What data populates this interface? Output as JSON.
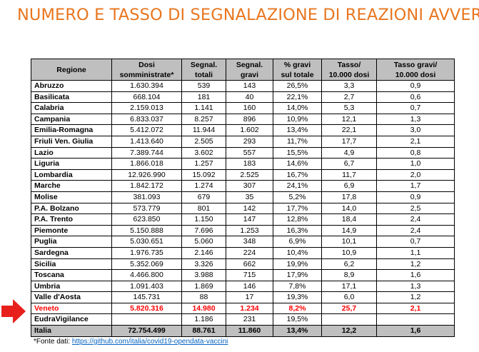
{
  "title": "NUMERO E TASSO DI SEGNALAZIONE DI REAZIONI AVVERSE",
  "table": {
    "headers": [
      [
        "Regione"
      ],
      [
        "Dosi",
        "somministrate*"
      ],
      [
        "Segnal.",
        "totali"
      ],
      [
        "Segnal.",
        "gravi"
      ],
      [
        "% gravi",
        "sul totale"
      ],
      [
        "Tasso/",
        "10.000 dosi"
      ],
      [
        "Tasso gravi/",
        "10.000 dosi"
      ]
    ],
    "rows": [
      [
        "Abruzzo",
        "1.630.394",
        "539",
        "143",
        "26,5%",
        "3,3",
        "0,9"
      ],
      [
        "Basilicata",
        "668.104",
        "181",
        "40",
        "22,1%",
        "2,7",
        "0,6"
      ],
      [
        "Calabria",
        "2.159.013",
        "1.141",
        "160",
        "14,0%",
        "5,3",
        "0,7"
      ],
      [
        "Campania",
        "6.833.037",
        "8.257",
        "896",
        "10,9%",
        "12,1",
        "1,3"
      ],
      [
        "Emilia-Romagna",
        "5.412.072",
        "11.944",
        "1.602",
        "13,4%",
        "22,1",
        "3,0"
      ],
      [
        "Friuli Ven. Giulia",
        "1.413.640",
        "2.505",
        "293",
        "11,7%",
        "17,7",
        "2,1"
      ],
      [
        "Lazio",
        "7.389.744",
        "3.602",
        "557",
        "15,5%",
        "4,9",
        "0,8"
      ],
      [
        "Liguria",
        "1.866.018",
        "1.257",
        "183",
        "14,6%",
        "6,7",
        "1,0"
      ],
      [
        "Lombardia",
        "12.926.990",
        "15.092",
        "2.525",
        "16,7%",
        "11,7",
        "2,0"
      ],
      [
        "Marche",
        "1.842.172",
        "1.274",
        "307",
        "24,1%",
        "6,9",
        "1,7"
      ],
      [
        "Molise",
        "381.093",
        "679",
        "35",
        "5,2%",
        "17,8",
        "0,9"
      ],
      [
        "P.A. Bolzano",
        "573.779",
        "801",
        "142",
        "17,7%",
        "14,0",
        "2,5"
      ],
      [
        "P.A. Trento",
        "623.850",
        "1.150",
        "147",
        "12,8%",
        "18,4",
        "2,4"
      ],
      [
        "Piemonte",
        "5.150.888",
        "7.696",
        "1.253",
        "16,3%",
        "14,9",
        "2,4"
      ],
      [
        "Puglia",
        "5.030.651",
        "5.060",
        "348",
        "6,9%",
        "10,1",
        "0,7"
      ],
      [
        "Sardegna",
        "1.976.735",
        "2.146",
        "224",
        "10,4%",
        "10,9",
        "1,1"
      ],
      [
        "Sicilia",
        "5.352.069",
        "3.326",
        "662",
        "19,9%",
        "6,2",
        "1,2"
      ],
      [
        "Toscana",
        "4.466.800",
        "3.988",
        "715",
        "17,9%",
        "8,9",
        "1,6"
      ],
      [
        "Umbria",
        "1.091.403",
        "1.869",
        "146",
        "7,8%",
        "17,1",
        "1,3"
      ],
      [
        "Valle d'Aosta",
        "145.731",
        "88",
        "17",
        "19,3%",
        "6,0",
        "1,2"
      ],
      [
        "Veneto",
        "5.820.316",
        "14.980",
        "1.234",
        "8,2%",
        "25,7",
        "2,1"
      ],
      [
        "EudraVigilance",
        "",
        "1.186",
        "231",
        "19,5%",
        "",
        ""
      ],
      [
        "Italia",
        "72.754.499",
        "88.761",
        "11.860",
        "13,4%",
        "12,2",
        "1,6"
      ]
    ],
    "highlight_row": "Veneto",
    "total_row": "Italia"
  },
  "source": {
    "label": "*Fonte dati: ",
    "link": "https://github.com/italia/covid19-opendata-vaccini"
  },
  "colors": {
    "title": "#e8761f",
    "header_bg": "#bfbfbf",
    "highlight": "#ff0000",
    "arrow": "#e8201c",
    "link": "#0563c1"
  },
  "icons": {
    "pointer": "right-arrow-icon"
  }
}
